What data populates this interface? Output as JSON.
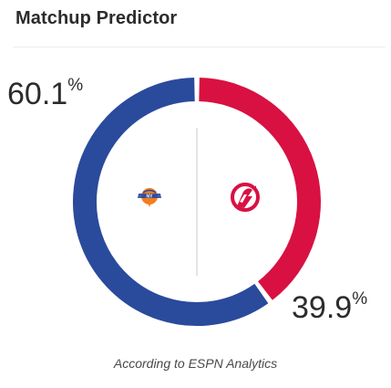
{
  "widget": {
    "title": "Matchup Predictor",
    "footnote": "According to ESPN Analytics"
  },
  "teams": [
    {
      "name": "knicks",
      "logo_icon": "knicks-logo-icon",
      "win_probability": 60.1,
      "percent_value": "60.1",
      "percent_sign": "%",
      "color": "#2a4a9c"
    },
    {
      "name": "raptors",
      "logo_icon": "raptors-logo-icon",
      "win_probability": 39.9,
      "percent_value": "39.9",
      "percent_sign": "%",
      "color": "#d81142"
    }
  ],
  "colors": {
    "title": "#2b2c2d",
    "divider": "#ececec",
    "footnote": "#48494a",
    "knicks_orange": "#f47c20",
    "knicks_blue": "#2a4a9c",
    "raptors_red": "#d81142"
  }
}
